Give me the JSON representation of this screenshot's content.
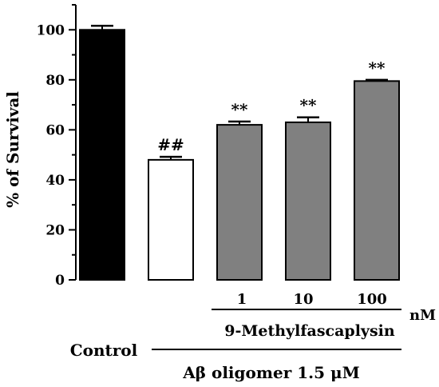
{
  "chart_data": {
    "type": "bar",
    "ylabel": "% of Survival",
    "ylim": [
      0,
      110
    ],
    "yticks": [
      0,
      20,
      40,
      60,
      80,
      100
    ],
    "minor_tick_step": 10,
    "grid": false,
    "legend": "none",
    "bars": [
      {
        "name": "Control",
        "value": 100,
        "error": 1.6,
        "sig": "",
        "fill": "#000000"
      },
      {
        "name": "Aβ oligomer",
        "value": 48,
        "error": 1.2,
        "sig": "##",
        "fill": "#ffffff"
      },
      {
        "name": "1",
        "value": 62,
        "error": 1.3,
        "sig": "**",
        "fill": "#808080"
      },
      {
        "name": "10",
        "value": 63,
        "error": 2.0,
        "sig": "**",
        "fill": "#808080"
      },
      {
        "name": "100",
        "value": 79.5,
        "error": 0.5,
        "sig": "**",
        "fill": "#808080"
      }
    ]
  },
  "annotations": {
    "dose_labels": [
      "1",
      "10",
      "100"
    ],
    "dose_unit": "nM",
    "compound": "9-Methylfascaplysin",
    "control_label": "Control",
    "oligomer_label": "Aβ oligomer 1.5 μM"
  }
}
